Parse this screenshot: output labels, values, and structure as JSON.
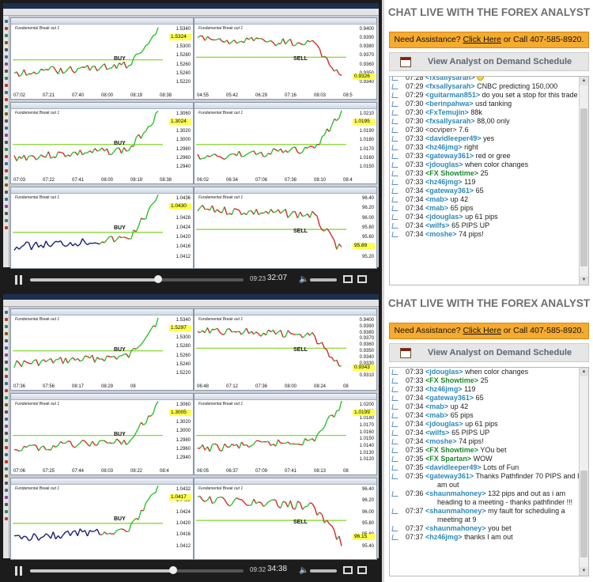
{
  "labels": {
    "buy": "BUY",
    "sell": "SELL",
    "chart_comment": "Fundamental Break out 1"
  },
  "top": {
    "player": {
      "elapsed": "32:07",
      "preview": "09:23",
      "progress": 0.6
    },
    "charts": [
      {
        "price": "1.5324",
        "y": [
          "1.5340",
          "1.5320",
          "1.5300",
          "1.5280",
          "1.5260",
          "1.5240",
          "1.5220"
        ],
        "x": [
          "07:02",
          "07:21",
          "07:40",
          "08:00",
          "08:19",
          "08:38"
        ]
      },
      {
        "price": "0.9326",
        "y": [
          "0.9400",
          "0.9390",
          "0.9380",
          "0.9370",
          "0.9360",
          "0.9350",
          "0.9340"
        ],
        "x": [
          "04:55",
          "05:42",
          "06:29",
          "07:16",
          "08:03",
          "08:5"
        ]
      },
      {
        "price": "1.3024",
        "y": [
          "1.3060",
          "1.3040",
          "1.3020",
          "1.3000",
          "1.2980",
          "1.2960",
          "1.2940"
        ],
        "x": [
          "07:03",
          "07:22",
          "07:41",
          "08:00",
          "08:19",
          "08:38"
        ]
      },
      {
        "price": "1.0195",
        "y": [
          "1.0210",
          "1.0200",
          "1.0190",
          "1.0180",
          "1.0170",
          "1.0160",
          "1.0150"
        ],
        "x": [
          "06:02",
          "06:34",
          "07:06",
          "07:38",
          "08:10",
          "08:4"
        ]
      },
      {
        "price": "1.0430",
        "y": [
          "1.0436",
          "1.0432",
          "1.0428",
          "1.0424",
          "1.0420",
          "1.0416",
          "1.0412"
        ],
        "x": []
      },
      {
        "price": "95.89",
        "y": [
          "96.40",
          "96.20",
          "96.00",
          "95.80",
          "95.60",
          "95.40",
          "95.20"
        ],
        "x": []
      }
    ],
    "chat_title": "CHAT LIVE WITH THE FOREX ANALYST",
    "assist": {
      "prefix": "Need Assistance?",
      "link": "Click Here",
      "suffix": "or Call 407-585-8920."
    },
    "schedule": "View Analyst on Demand Schedule",
    "messages": [
      {
        "time": "07:28",
        "name": "<fxsallysarah>",
        "text": "",
        "smiley": true
      },
      {
        "time": "07:29",
        "name": "<fxsallysarah>",
        "text": "CNBC predicting 150,000"
      },
      {
        "time": "07:29",
        "name": "<guitarman851>",
        "text": "do you set a stop for this trade"
      },
      {
        "time": "07:30",
        "name": "<berinpahwa>",
        "text": "usd tanking"
      },
      {
        "time": "07:30",
        "name": "<FxTemujin>",
        "text": "88k"
      },
      {
        "time": "07:30",
        "name": "<fxsallysarah>",
        "text": "88,00 only"
      },
      {
        "time": "07:30",
        "name": "<ocviper>",
        "text": "7.6",
        "plain": true
      },
      {
        "time": "07:33",
        "name": "<davidleeper49>",
        "text": "yes"
      },
      {
        "time": "07:33",
        "name": "<hz46jmg>",
        "text": "right"
      },
      {
        "time": "07:33",
        "name": "<gateway361>",
        "text": "red or gree"
      },
      {
        "time": "07:33",
        "name": "<jdouglas>",
        "text": "when color changes"
      },
      {
        "time": "07:33",
        "name": "<FX Showtime>",
        "text": "25",
        "green": true
      },
      {
        "time": "07:33",
        "name": "<hz46jmg>",
        "text": "119"
      },
      {
        "time": "07:34",
        "name": "<gateway361>",
        "text": "65"
      },
      {
        "time": "07:34",
        "name": "<mab>",
        "text": "up 42"
      },
      {
        "time": "07:34",
        "name": "<mab>",
        "text": "65 pips"
      },
      {
        "time": "07:34",
        "name": "<jdouglas>",
        "text": "up 61 pips"
      },
      {
        "time": "07:34",
        "name": "<wilfs>",
        "text": "65 PIPS UP"
      },
      {
        "time": "07:34",
        "name": "<moshe>",
        "text": "74 pips!"
      }
    ]
  },
  "bottom": {
    "player": {
      "elapsed": "34:38",
      "preview": "09:32",
      "progress": 0.67
    },
    "charts": [
      {
        "price": "1.5297",
        "y": [
          "1.5340",
          "1.5320",
          "1.5300",
          "1.5280",
          "1.5260",
          "1.5240",
          "1.5220"
        ],
        "x": [
          "07:36",
          "07:56",
          "08:17",
          "08:29",
          "08"
        ]
      },
      {
        "price": "0.9343",
        "y": [
          "0.9400",
          "0.9390",
          "0.9380",
          "0.9370",
          "0.9360",
          "0.9350",
          "0.9340",
          "0.9330",
          "0.9320",
          "0.9310"
        ],
        "x": [
          "06:48",
          "07:12",
          "07:36",
          "08:00",
          "08:24",
          "08"
        ]
      },
      {
        "price": "1.3005",
        "y": [
          "1.3060",
          "1.3040",
          "1.3020",
          "1.3000",
          "1.2980",
          "1.2960",
          "1.2940"
        ],
        "x": [
          "07:06",
          "07:25",
          "07:44",
          "08:03",
          "08:22",
          "08:4"
        ]
      },
      {
        "price": "1.0199",
        "y": [
          "1.0200",
          "1.0190",
          "1.0180",
          "1.0170",
          "1.0160",
          "1.0150",
          "1.0140",
          "1.0130",
          "1.0120"
        ],
        "x": [
          "06:05",
          "06:37",
          "07:09",
          "07:41",
          "08:13",
          "08"
        ]
      },
      {
        "price": "1.0417",
        "y": [
          "1.0432",
          "1.0428",
          "1.0424",
          "1.0420",
          "1.0416",
          "1.0412"
        ],
        "x": []
      },
      {
        "price": "96.15",
        "y": [
          "96.40",
          "96.20",
          "96.00",
          "95.80",
          "95.60",
          "95.40"
        ],
        "x": []
      }
    ],
    "chat_title": "CHAT LIVE WITH THE FOREX ANALYST",
    "assist": {
      "prefix": "Need Assistance?",
      "link": "Click Here",
      "suffix": "or Call 407-585-8920."
    },
    "schedule": "View Analyst on Demand Schedule",
    "messages": [
      {
        "time": "07:33",
        "name": "<jdouglas>",
        "text": "when color changes"
      },
      {
        "time": "07:33",
        "name": "<FX Showtime>",
        "text": "25",
        "green": true
      },
      {
        "time": "07:33",
        "name": "<hz46jmg>",
        "text": "119"
      },
      {
        "time": "07:34",
        "name": "<gateway361>",
        "text": "65"
      },
      {
        "time": "07:34",
        "name": "<mab>",
        "text": "up 42"
      },
      {
        "time": "07:34",
        "name": "<mab>",
        "text": "65 pips"
      },
      {
        "time": "07:34",
        "name": "<jdouglas>",
        "text": "up 61 pips"
      },
      {
        "time": "07:34",
        "name": "<wilfs>",
        "text": "65 PIPS UP"
      },
      {
        "time": "07:34",
        "name": "<moshe>",
        "text": "74 pips!"
      },
      {
        "time": "07:35",
        "name": "<FX Showtime>",
        "text": "YOu bet",
        "green": true
      },
      {
        "time": "07:35",
        "name": "<FX Spartan>",
        "text": "WOW",
        "green": true
      },
      {
        "time": "07:35",
        "name": "<davidleeper49>",
        "text": "Lots of Fun"
      },
      {
        "time": "07:35",
        "name": "<gateway361>",
        "text": "Thanks Pathfinder 70 PIPS and I am out"
      },
      {
        "time": "07:36",
        "name": "<shaunmahoney>",
        "text": "132 pips and out as i am heading to a meeting - thanks pathfinder !!!"
      },
      {
        "time": "07:37",
        "name": "<shaunmahoney>",
        "text": "my fault for scheduling a meeting at 9"
      },
      {
        "time": "07:37",
        "name": "<shaunmahoney>",
        "text": "you bet"
      },
      {
        "time": "07:37",
        "name": "<hz46jmg>",
        "text": "thanks I am out"
      }
    ]
  }
}
